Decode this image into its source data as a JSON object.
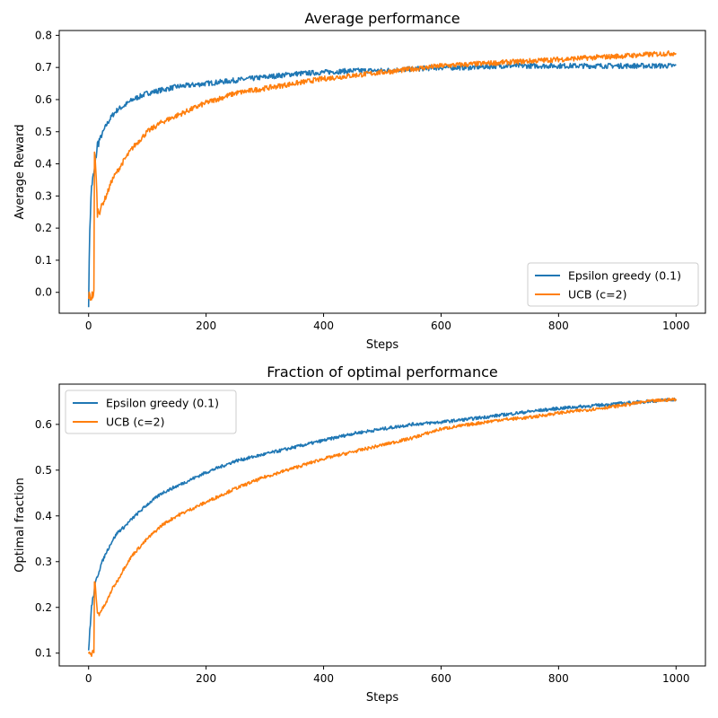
{
  "chart_data": [
    {
      "type": "line",
      "title": "Average performance",
      "xlabel": "Steps",
      "ylabel": "Average Reward",
      "xlim": [
        -50,
        1050
      ],
      "ylim": [
        -0.065,
        0.815
      ],
      "xticks": [
        "0",
        "200",
        "400",
        "600",
        "800",
        "1000"
      ],
      "yticks": [
        "0.0",
        "0.1",
        "0.2",
        "0.3",
        "0.4",
        "0.5",
        "0.6",
        "0.7",
        "0.8"
      ],
      "legend_loc": "lower-right",
      "grid": false,
      "series": [
        {
          "name": "Epsilon greedy (0.1)",
          "color": "#1f77b4",
          "x": [
            0,
            2,
            5,
            10,
            15,
            20,
            30,
            40,
            50,
            60,
            75,
            100,
            125,
            150,
            200,
            250,
            300,
            350,
            400,
            450,
            500,
            550,
            600,
            650,
            700,
            750,
            800,
            850,
            900,
            950,
            1000
          ],
          "y": [
            -0.03,
            0.2,
            0.33,
            0.38,
            0.46,
            0.48,
            0.52,
            0.55,
            0.57,
            0.58,
            0.6,
            0.62,
            0.63,
            0.64,
            0.65,
            0.66,
            0.67,
            0.68,
            0.685,
            0.69,
            0.69,
            0.695,
            0.7,
            0.7,
            0.705,
            0.705,
            0.705,
            0.705,
            0.705,
            0.705,
            0.705
          ]
        },
        {
          "name": "UCB (c=2)",
          "color": "#ff7f0e",
          "x": [
            0,
            3,
            6,
            9,
            10,
            12,
            15,
            20,
            30,
            40,
            50,
            60,
            75,
            100,
            125,
            150,
            200,
            250,
            300,
            350,
            400,
            450,
            500,
            550,
            600,
            650,
            700,
            750,
            800,
            850,
            900,
            950,
            1000
          ],
          "y": [
            -0.01,
            -0.015,
            -0.01,
            -0.005,
            0.43,
            0.4,
            0.25,
            0.26,
            0.3,
            0.35,
            0.38,
            0.41,
            0.45,
            0.5,
            0.53,
            0.55,
            0.59,
            0.62,
            0.635,
            0.65,
            0.665,
            0.675,
            0.685,
            0.695,
            0.705,
            0.71,
            0.715,
            0.72,
            0.725,
            0.73,
            0.735,
            0.74,
            0.745
          ]
        }
      ]
    },
    {
      "type": "line",
      "title": "Fraction of optimal performance",
      "xlabel": "Steps",
      "ylabel": "Optimal fraction",
      "xlim": [
        -50,
        1050
      ],
      "ylim": [
        0.072,
        0.688
      ],
      "xticks": [
        "0",
        "200",
        "400",
        "600",
        "800",
        "1000"
      ],
      "yticks": [
        "0.1",
        "0.2",
        "0.3",
        "0.4",
        "0.5",
        "0.6"
      ],
      "legend_loc": "upper-left",
      "grid": false,
      "series": [
        {
          "name": "Epsilon greedy (0.1)",
          "color": "#1f77b4",
          "x": [
            0,
            2,
            5,
            10,
            15,
            20,
            30,
            40,
            50,
            60,
            75,
            100,
            125,
            150,
            200,
            250,
            300,
            350,
            400,
            450,
            500,
            550,
            600,
            650,
            700,
            750,
            800,
            850,
            900,
            950,
            1000
          ],
          "y": [
            0.1,
            0.15,
            0.2,
            0.24,
            0.27,
            0.29,
            0.32,
            0.345,
            0.365,
            0.375,
            0.395,
            0.425,
            0.45,
            0.465,
            0.495,
            0.52,
            0.535,
            0.55,
            0.565,
            0.58,
            0.59,
            0.6,
            0.605,
            0.612,
            0.62,
            0.628,
            0.635,
            0.64,
            0.645,
            0.65,
            0.655
          ]
        },
        {
          "name": "UCB (c=2)",
          "color": "#ff7f0e",
          "x": [
            0,
            3,
            6,
            9,
            10,
            12,
            15,
            20,
            30,
            40,
            50,
            60,
            75,
            100,
            125,
            150,
            200,
            250,
            300,
            350,
            400,
            450,
            500,
            550,
            600,
            650,
            700,
            750,
            800,
            850,
            900,
            950,
            1000
          ],
          "y": [
            0.1,
            0.095,
            0.1,
            0.1,
            0.26,
            0.24,
            0.185,
            0.19,
            0.21,
            0.24,
            0.26,
            0.285,
            0.315,
            0.35,
            0.38,
            0.4,
            0.43,
            0.46,
            0.485,
            0.505,
            0.525,
            0.54,
            0.555,
            0.57,
            0.59,
            0.6,
            0.61,
            0.615,
            0.625,
            0.632,
            0.64,
            0.65,
            0.655
          ]
        }
      ]
    }
  ]
}
